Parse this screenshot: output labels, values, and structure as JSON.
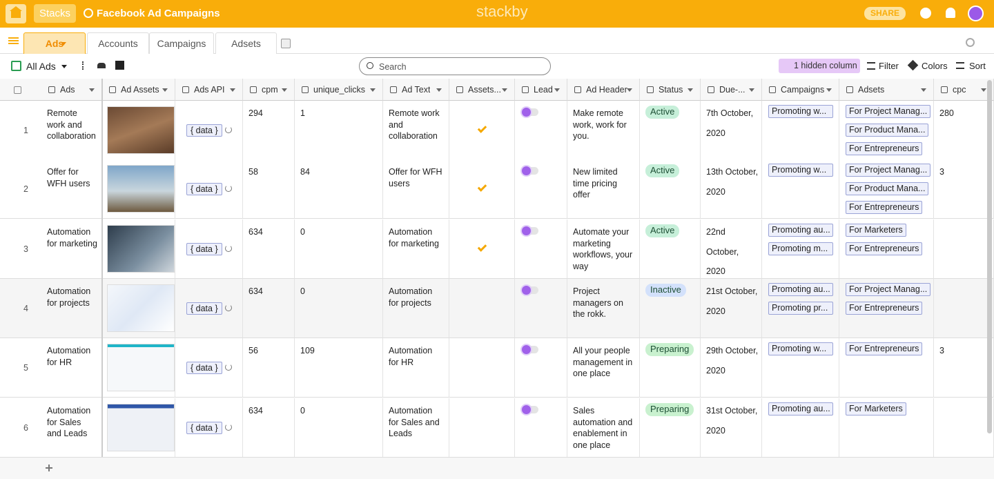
{
  "top_bar": {
    "stacks": "Stacks",
    "title": "Facebook Ad Campaigns",
    "logo": "stackby",
    "share": "SHARE"
  },
  "tabs": [
    "Ads",
    "Accounts",
    "Campaigns",
    "Adsets"
  ],
  "toolbar": {
    "view": "All Ads",
    "search_placeholder": "Search",
    "hidden": "1 hidden column",
    "filter": "Filter",
    "colors": "Colors",
    "sort": "Sort"
  },
  "columns": [
    "Ads",
    "Ad Assets",
    "Ads API",
    "cpm",
    "unique_clicks",
    "Ad Text",
    "Assets...",
    "Lead",
    "Ad Header",
    "Status",
    "Due-...",
    "Campaigns",
    "Adsets",
    "cpc"
  ],
  "rows": [
    {
      "number": 1,
      "ads": "Remote work and collaboration",
      "api": "{ data }",
      "cpm": 294,
      "unique_clicks": 1,
      "ad_text": "Remote work and collaboration",
      "assets": true,
      "ad_header": "Make remote work, work for you.",
      "status": "Active",
      "status_color": "#c6efd9",
      "due": "7th October, 2020",
      "campaigns": [
        "Promoting w..."
      ],
      "adsets": [
        "For Project Manag...",
        "For Product Mana...",
        "For Entrepreneurs"
      ],
      "cpc": 280
    },
    {
      "number": 2,
      "ads": "Offer for WFH users",
      "api": "{ data }",
      "cpm": 58,
      "unique_clicks": 84,
      "ad_text": "Offer for WFH users",
      "assets": true,
      "ad_header": "New limited time pricing offer",
      "status": "Active",
      "status_color": "#c6efd9",
      "due": "13th October, 2020",
      "campaigns": [
        "Promoting w..."
      ],
      "adsets": [
        "For Project Manag...",
        "For Product Mana...",
        "For Entrepreneurs"
      ],
      "cpc": 3
    },
    {
      "number": 3,
      "ads": "Automation for marketing",
      "api": "{ data }",
      "cpm": 634,
      "unique_clicks": 0,
      "ad_text": "Automation for marketing",
      "assets": true,
      "ad_header": "Automate your marketing workflows, your way",
      "status": "Active",
      "status_color": "#c6efd9",
      "due": "22nd October, 2020",
      "campaigns": [
        "Promoting au...",
        "Promoting m..."
      ],
      "adsets": [
        "For Marketers",
        "For Entrepreneurs"
      ],
      "cpc": null
    },
    {
      "number": 4,
      "ads": "Automation for projects",
      "api": "{ data }",
      "cpm": 634,
      "unique_clicks": 0,
      "ad_text": "Automation for projects",
      "assets": false,
      "ad_header": "Project managers on the rokk.",
      "status": "Inactive",
      "status_color": "#d3e1fb",
      "due": "21st October, 2020",
      "campaigns": [
        "Promoting au...",
        "Promoting pr..."
      ],
      "adsets": [
        "For Project Manag...",
        "For Entrepreneurs"
      ],
      "cpc": null
    },
    {
      "number": 5,
      "ads": "Automation for HR",
      "api": "{ data }",
      "cpm": 56,
      "unique_clicks": 109,
      "ad_text": "Automation for HR",
      "assets": false,
      "ad_header": "All your people management in one place",
      "status": "Preparing",
      "status_color": "#c9f1cf",
      "due": "29th October, 2020",
      "campaigns": [
        "Promoting w..."
      ],
      "adsets": [
        "For Entrepreneurs"
      ],
      "cpc": 3
    },
    {
      "number": 6,
      "ads": "Automation for Sales and Leads",
      "api": "{ data }",
      "cpm": 634,
      "unique_clicks": 0,
      "ad_text": "Automation for Sales and Leads",
      "assets": false,
      "ad_header": "Sales automation and enablement in one place",
      "status": "Preparing",
      "status_color": "#c9f1cf",
      "due": "31st October, 2020",
      "campaigns": [
        "Promoting au..."
      ],
      "adsets": [
        "For Marketers"
      ],
      "cpc": null
    }
  ]
}
